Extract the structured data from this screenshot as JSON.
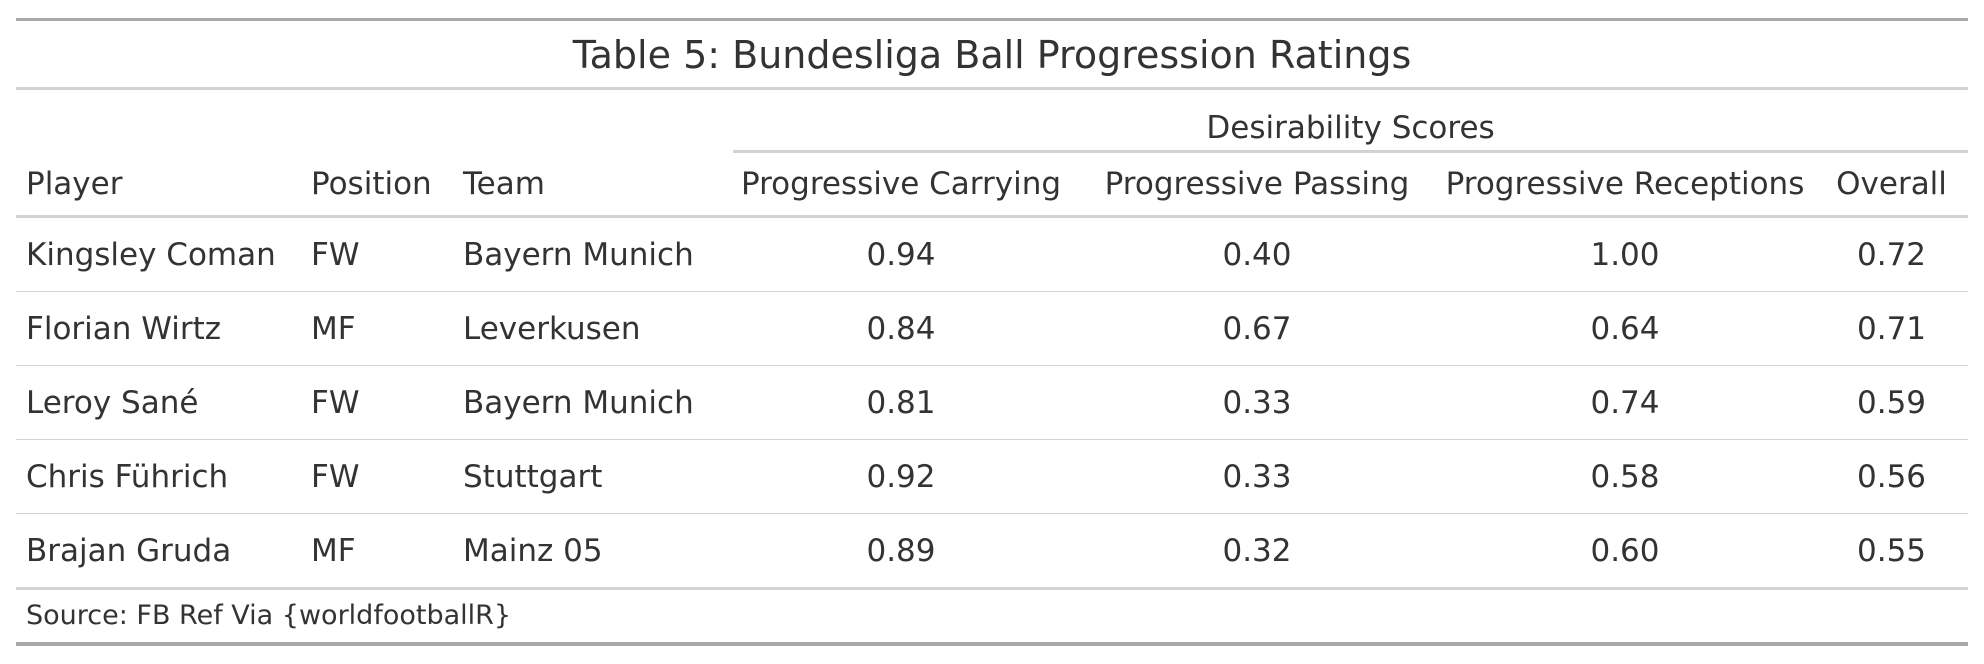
{
  "title": "Table 5: Bundesliga Ball Progression Ratings",
  "spanner_label": "Desirability Scores",
  "columns": {
    "player": "Player",
    "position": "Position",
    "team": "Team",
    "carrying": "Progressive Carrying",
    "passing": "Progressive Passing",
    "receptions": "Progressive Receptions",
    "overall": "Overall"
  },
  "rows": [
    {
      "player": "Kingsley Coman",
      "position": "FW",
      "team": "Bayern Munich",
      "carrying": "0.94",
      "passing": "0.40",
      "receptions": "1.00",
      "overall": "0.72"
    },
    {
      "player": "Florian Wirtz",
      "position": "MF",
      "team": "Leverkusen",
      "carrying": "0.84",
      "passing": "0.67",
      "receptions": "0.64",
      "overall": "0.71"
    },
    {
      "player": "Leroy Sané",
      "position": "FW",
      "team": "Bayern Munich",
      "carrying": "0.81",
      "passing": "0.33",
      "receptions": "0.74",
      "overall": "0.59"
    },
    {
      "player": "Chris Führich",
      "position": "FW",
      "team": "Stuttgart",
      "carrying": "0.92",
      "passing": "0.33",
      "receptions": "0.58",
      "overall": "0.56"
    },
    {
      "player": "Brajan Gruda",
      "position": "MF",
      "team": "Mainz 05",
      "carrying": "0.89",
      "passing": "0.32",
      "receptions": "0.60",
      "overall": "0.55"
    }
  ],
  "source_note": "Source: FB Ref Via {worldfootballR}"
}
